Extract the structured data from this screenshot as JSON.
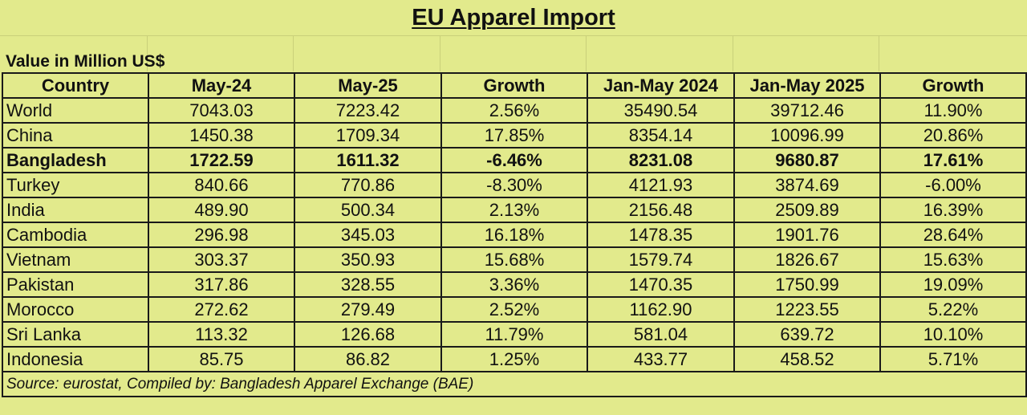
{
  "title": "EU Apparel Import",
  "subtitle": "Value in Million US$",
  "source": "Source: eurostat, Compiled by: Bangladesh Apparel Exchange (BAE)",
  "colors": {
    "background": "#e2ea8c",
    "border": "#1a1a1a"
  },
  "chart_data": {
    "type": "table",
    "title": "EU Apparel Import",
    "subtitle": "Value in Million US$",
    "columns": [
      "Country",
      "May-24",
      "May-25",
      "Growth",
      "Jan-May 2024",
      "Jan-May 2025",
      "Growth"
    ],
    "rows": [
      {
        "cells": [
          "World",
          "7043.03",
          "7223.42",
          "2.56%",
          "35490.54",
          "39712.46",
          "11.90%"
        ],
        "bold": false
      },
      {
        "cells": [
          "China",
          "1450.38",
          "1709.34",
          "17.85%",
          "8354.14",
          "10096.99",
          "20.86%"
        ],
        "bold": false
      },
      {
        "cells": [
          "Bangladesh",
          "1722.59",
          "1611.32",
          "-6.46%",
          "8231.08",
          "9680.87",
          "17.61%"
        ],
        "bold": true
      },
      {
        "cells": [
          "Turkey",
          "840.66",
          "770.86",
          "-8.30%",
          "4121.93",
          "3874.69",
          "-6.00%"
        ],
        "bold": false
      },
      {
        "cells": [
          "India",
          "489.90",
          "500.34",
          "2.13%",
          "2156.48",
          "2509.89",
          "16.39%"
        ],
        "bold": false
      },
      {
        "cells": [
          "Cambodia",
          "296.98",
          "345.03",
          "16.18%",
          "1478.35",
          "1901.76",
          "28.64%"
        ],
        "bold": false
      },
      {
        "cells": [
          "Vietnam",
          "303.37",
          "350.93",
          "15.68%",
          "1579.74",
          "1826.67",
          "15.63%"
        ],
        "bold": false
      },
      {
        "cells": [
          "Pakistan",
          "317.86",
          "328.55",
          "3.36%",
          "1470.35",
          "1750.99",
          "19.09%"
        ],
        "bold": false
      },
      {
        "cells": [
          "Morocco",
          "272.62",
          "279.49",
          "2.52%",
          "1162.90",
          "1223.55",
          "5.22%"
        ],
        "bold": false
      },
      {
        "cells": [
          "Sri Lanka",
          "113.32",
          "126.68",
          "11.79%",
          "581.04",
          "639.72",
          "10.10%"
        ],
        "bold": false
      },
      {
        "cells": [
          "Indonesia",
          "85.75",
          "86.82",
          "1.25%",
          "433.77",
          "458.52",
          "5.71%"
        ],
        "bold": false
      }
    ]
  }
}
